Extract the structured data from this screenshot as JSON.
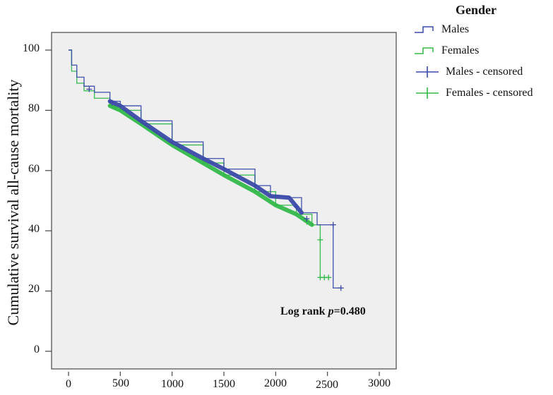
{
  "chart_data": {
    "type": "line",
    "subtype": "kaplan-meier",
    "title": "",
    "xlabel": "",
    "ylabel": "Cumulative survival all-cause mortality",
    "xlim": [
      0,
      3000
    ],
    "ylim": [
      0,
      100
    ],
    "x_ticks": [
      0,
      500,
      1000,
      1500,
      2000,
      2500,
      3000
    ],
    "y_ticks": [
      0,
      20,
      40,
      60,
      80,
      100
    ],
    "grid": false,
    "background": "#efefef",
    "legend": {
      "title": "Gender",
      "position": "right-top",
      "entries": [
        "Males",
        "Females",
        "Males - censored",
        "Females - censored"
      ]
    },
    "annotation": {
      "prefix": "Log rank ",
      "p_symbol": "p",
      "value": "=0.480"
    },
    "series": [
      {
        "name": "Males",
        "color": "#3b4aa8",
        "x": [
          0,
          30,
          80,
          150,
          250,
          400,
          500,
          700,
          1000,
          1300,
          1500,
          1800,
          1950,
          2130,
          2250,
          2400,
          2555,
          2555,
          2630
        ],
        "y": [
          100,
          95,
          91,
          88,
          86,
          83,
          81.5,
          76.5,
          69.5,
          64,
          60.5,
          55,
          51.5,
          51,
          46,
          42,
          42,
          21,
          21
        ],
        "censored_x": [
          200,
          420,
          2200,
          2300,
          2555,
          2630
        ],
        "censored_y": [
          87,
          82.5,
          48,
          44,
          42,
          21
        ]
      },
      {
        "name": "Females",
        "color": "#33b84a",
        "x": [
          0,
          30,
          80,
          150,
          250,
          400,
          500,
          700,
          1000,
          1300,
          1500,
          1800,
          2000,
          2200,
          2350,
          2430,
          2430,
          2430,
          2520
        ],
        "y": [
          100,
          93,
          89,
          86.5,
          84,
          81.5,
          80,
          75.5,
          68.5,
          62.5,
          58.5,
          53,
          48.5,
          45.5,
          42,
          41,
          37,
          24.5,
          24.5
        ],
        "censored_x": [
          450,
          2300,
          2430,
          2430,
          2470,
          2510
        ],
        "censored_y": [
          81,
          43,
          37,
          24.5,
          24.5,
          24.5
        ]
      }
    ]
  },
  "legend": {
    "title": "Gender",
    "items": [
      {
        "label": "Males",
        "kind": "step",
        "color": "#3b4aa8"
      },
      {
        "label": "Females",
        "kind": "step",
        "color": "#33b84a"
      },
      {
        "label": "Males - censored",
        "kind": "cross",
        "color": "#3b4aa8"
      },
      {
        "label": "Females - censored",
        "kind": "cross",
        "color": "#33b84a"
      }
    ]
  },
  "axes": {
    "ylabel": "Cumulative survival all-cause mortality",
    "y_tick_labels": [
      "100",
      "80",
      "60",
      "40",
      "20",
      "0"
    ],
    "x_tick_labels": [
      "0",
      "500",
      "1000",
      "1500",
      "2000",
      "2500",
      "3000"
    ]
  },
  "annotation": {
    "prefix": "Log rank ",
    "p_symbol": "p",
    "value": "=0.480"
  }
}
